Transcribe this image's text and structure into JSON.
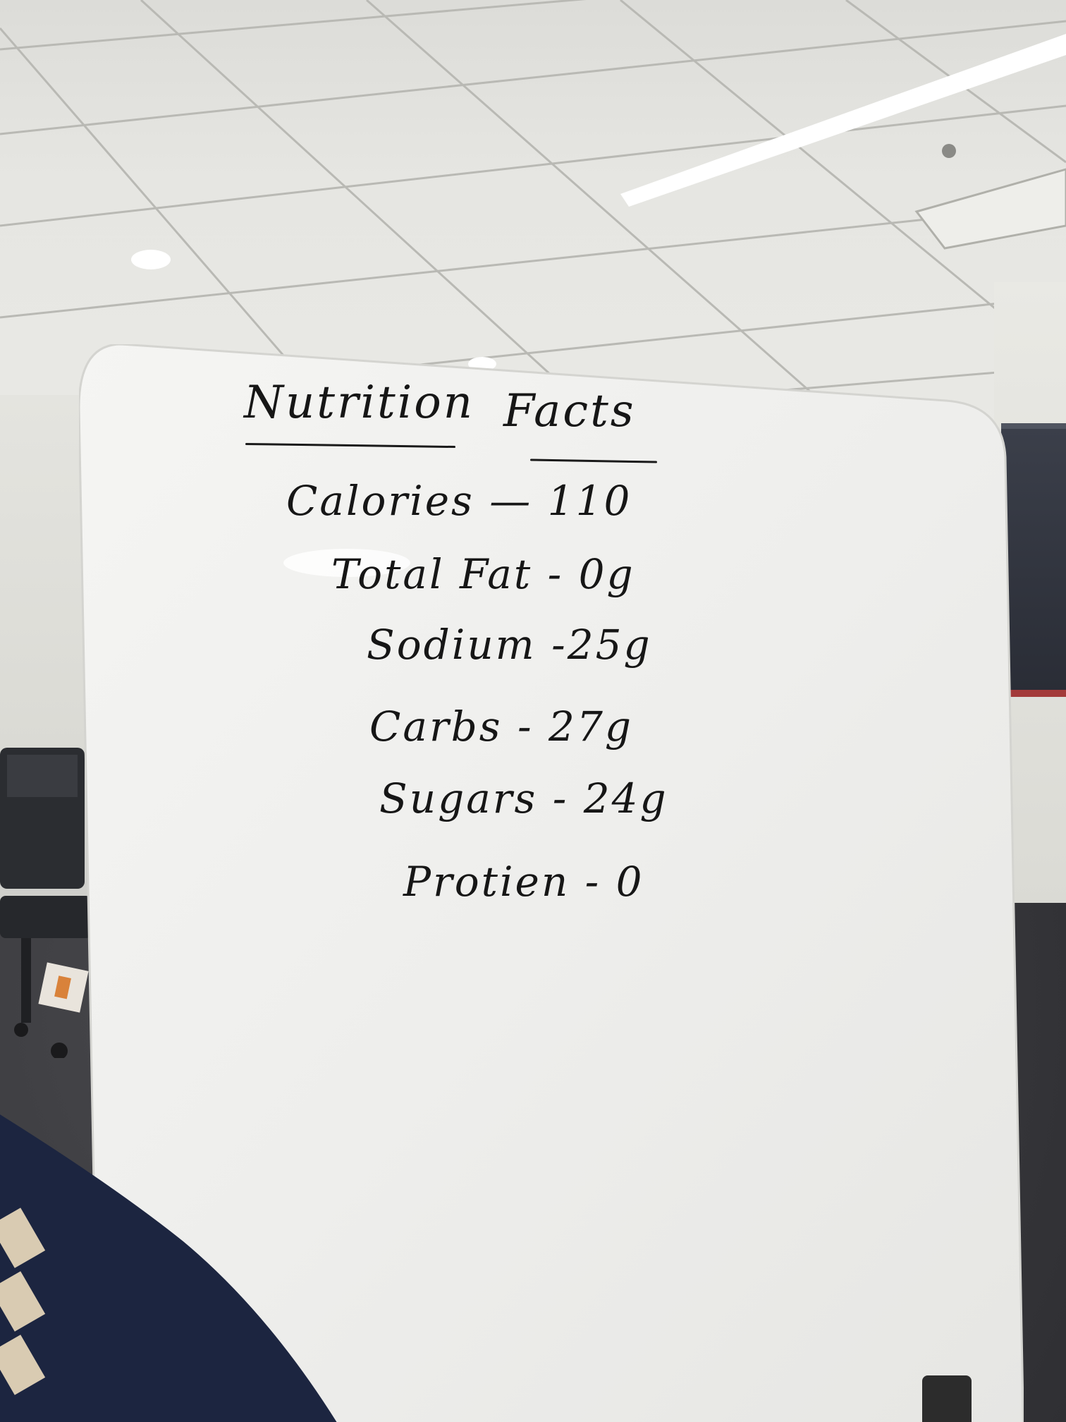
{
  "whiteboard": {
    "title_word_1": "Nutrition",
    "title_word_2": "Facts",
    "lines": [
      "Calories — 110",
      "Total Fat - 0g",
      "Sodium -25g",
      "Carbs - 27g",
      "Sugars - 24g",
      "Protien - 0"
    ]
  },
  "colors": {
    "marker": "#161616",
    "board": "#f2f2f0",
    "ceiling": "#e6e6e2",
    "sleeve": "#1c2540"
  }
}
